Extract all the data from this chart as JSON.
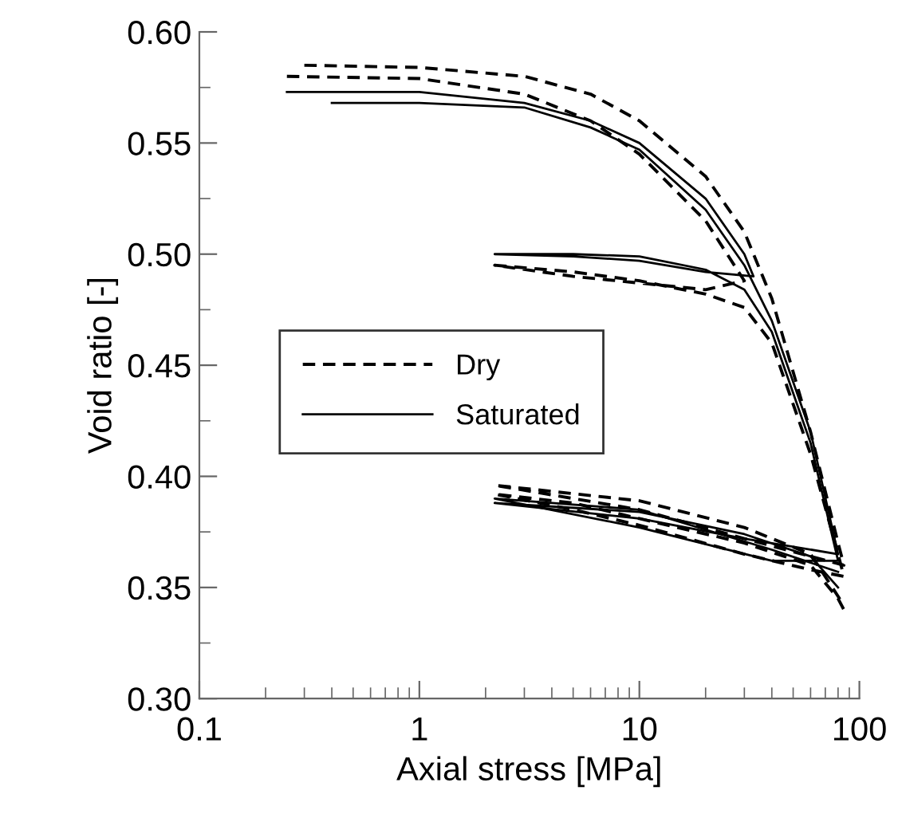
{
  "chart_data": {
    "type": "line",
    "xlabel": "Axial stress [MPa]",
    "ylabel": "Void ratio [-]",
    "log": "x",
    "xlim": [
      0.1,
      100
    ],
    "xticks": [
      0.1,
      1,
      10,
      100
    ],
    "ylim": [
      0.3,
      0.6
    ],
    "yticks": [
      {
        "value": 0.3,
        "label": "0.30"
      },
      {
        "value": 0.35,
        "label": "0.35"
      },
      {
        "value": 0.4,
        "label": "0.40"
      },
      {
        "value": 0.45,
        "label": "0.45"
      },
      {
        "value": 0.5,
        "label": "0.50"
      },
      {
        "value": 0.55,
        "label": "0.55"
      },
      {
        "value": 0.6,
        "label": "0.60"
      }
    ],
    "grid": false,
    "legend": "center left",
    "series": [
      {
        "name": "Dry",
        "color": "#000000",
        "line_style": "dashed",
        "x": [
          0.25,
          1,
          3,
          6,
          10,
          20,
          30,
          20,
          10,
          5,
          2.2,
          5,
          10,
          20,
          30,
          40,
          60,
          80,
          85,
          60,
          30,
          10,
          5,
          2.2,
          5,
          10,
          30,
          60,
          80,
          85
        ],
        "values": [
          0.58,
          0.579,
          0.572,
          0.56,
          0.545,
          0.515,
          0.488,
          0.484,
          0.487,
          0.49,
          0.495,
          0.492,
          0.488,
          0.482,
          0.476,
          0.46,
          0.41,
          0.365,
          0.355,
          0.358,
          0.365,
          0.378,
          0.385,
          0.392,
          0.388,
          0.381,
          0.37,
          0.36,
          0.345,
          0.34
        ]
      },
      {
        "color": "#000000",
        "line_style": "dashed",
        "x": [
          0.3,
          1,
          3,
          6,
          10,
          20,
          30,
          40,
          60,
          80,
          85,
          30,
          10,
          2.2,
          10,
          30,
          60,
          85
        ],
        "values": [
          0.585,
          0.584,
          0.58,
          0.572,
          0.56,
          0.535,
          0.51,
          0.48,
          0.42,
          0.37,
          0.36,
          0.372,
          0.385,
          0.396,
          0.389,
          0.377,
          0.365,
          0.342
        ]
      },
      {
        "name": "Saturated",
        "color": "#000000",
        "line_style": "solid",
        "x": [
          0.25,
          1,
          3,
          6,
          10,
          20,
          30,
          33,
          20,
          10,
          5,
          2.2,
          5,
          10,
          20,
          30,
          40,
          60,
          80,
          40,
          10,
          2.2,
          10,
          40,
          80
        ],
        "values": [
          0.573,
          0.573,
          0.568,
          0.56,
          0.55,
          0.525,
          0.5,
          0.49,
          0.492,
          0.497,
          0.499,
          0.5,
          0.5,
          0.499,
          0.493,
          0.484,
          0.465,
          0.415,
          0.362,
          0.362,
          0.377,
          0.39,
          0.385,
          0.367,
          0.357
        ]
      },
      {
        "color": "#000000",
        "line_style": "solid",
        "x": [
          0.4,
          1,
          3,
          6,
          10,
          20,
          30,
          40,
          60,
          80,
          30,
          10,
          2.2,
          10,
          30,
          60,
          80
        ],
        "values": [
          0.568,
          0.568,
          0.566,
          0.557,
          0.547,
          0.52,
          0.495,
          0.47,
          0.42,
          0.365,
          0.372,
          0.381,
          0.388,
          0.384,
          0.374,
          0.364,
          0.35
        ]
      }
    ]
  }
}
